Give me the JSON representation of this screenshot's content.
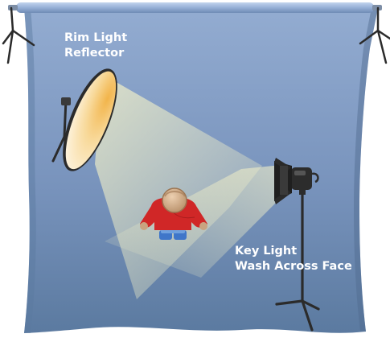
{
  "labels": {
    "rim": [
      "Rim Light",
      "Reflector"
    ],
    "key": [
      "Key Light",
      "Wash Across Face"
    ]
  },
  "colors": {
    "backdrop_top": "#8fa9cf",
    "backdrop_bottom": "#5e7ea3",
    "backdrop_edge": "#4f6b8e",
    "roller": "#9cb4d8",
    "light_beam": "#f3f0c2",
    "reflector_inner": "#f5c35c",
    "reflector_outer": "#fdf7e8",
    "stand": "#2b2b2b",
    "shirt": "#d62a2a",
    "hair": "#caa47f",
    "jeans": "#5c8fd0",
    "label_text": "#ffffff"
  },
  "icons": {
    "rim_light": "reflector-icon",
    "key_light": "spotlight-icon",
    "subject": "person-top-view-icon",
    "stand": "tripod-stand-icon"
  }
}
